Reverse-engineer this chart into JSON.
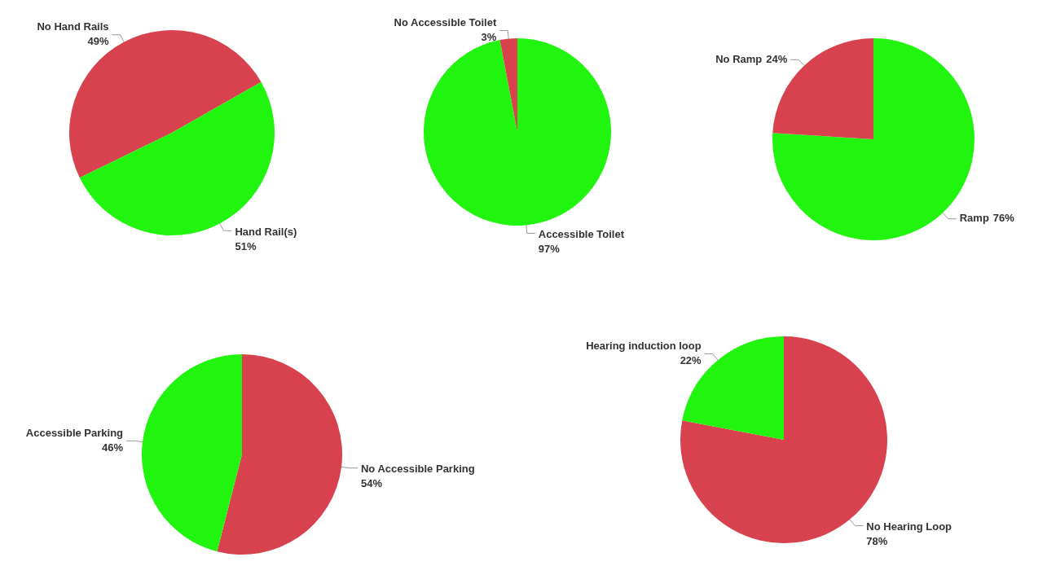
{
  "chart_data": [
    {
      "type": "pie",
      "categories": [
        "No Hand Rails",
        "Hand Rail(s)"
      ],
      "values": [
        49,
        51
      ],
      "value_labels": [
        "49%",
        "51%"
      ],
      "colors": [
        "#d7424e",
        "#21f50f"
      ],
      "legend": false
    },
    {
      "type": "pie",
      "categories": [
        "Accessible Toilet",
        "No Accessible Toilet"
      ],
      "values": [
        97,
        3
      ],
      "value_labels": [
        "97%",
        "3%"
      ],
      "colors": [
        "#21f50f",
        "#d7424e"
      ],
      "legend": false
    },
    {
      "type": "pie",
      "categories": [
        "Ramp",
        "No Ramp"
      ],
      "values": [
        76,
        24
      ],
      "value_labels": [
        "76%",
        "24%"
      ],
      "colors": [
        "#21f50f",
        "#d7424e"
      ],
      "legend": false
    },
    {
      "type": "pie",
      "categories": [
        "No Accessible Parking",
        "Accessible Parking"
      ],
      "values": [
        54,
        46
      ],
      "value_labels": [
        "54%",
        "46%"
      ],
      "colors": [
        "#d7424e",
        "#21f50f"
      ],
      "legend": false
    },
    {
      "type": "pie",
      "categories": [
        "No Hearing Loop",
        "Hearing induction loop"
      ],
      "values": [
        78,
        22
      ],
      "value_labels": [
        "78%",
        "22%"
      ],
      "colors": [
        "#d7424e",
        "#21f50f"
      ],
      "legend": false
    }
  ]
}
